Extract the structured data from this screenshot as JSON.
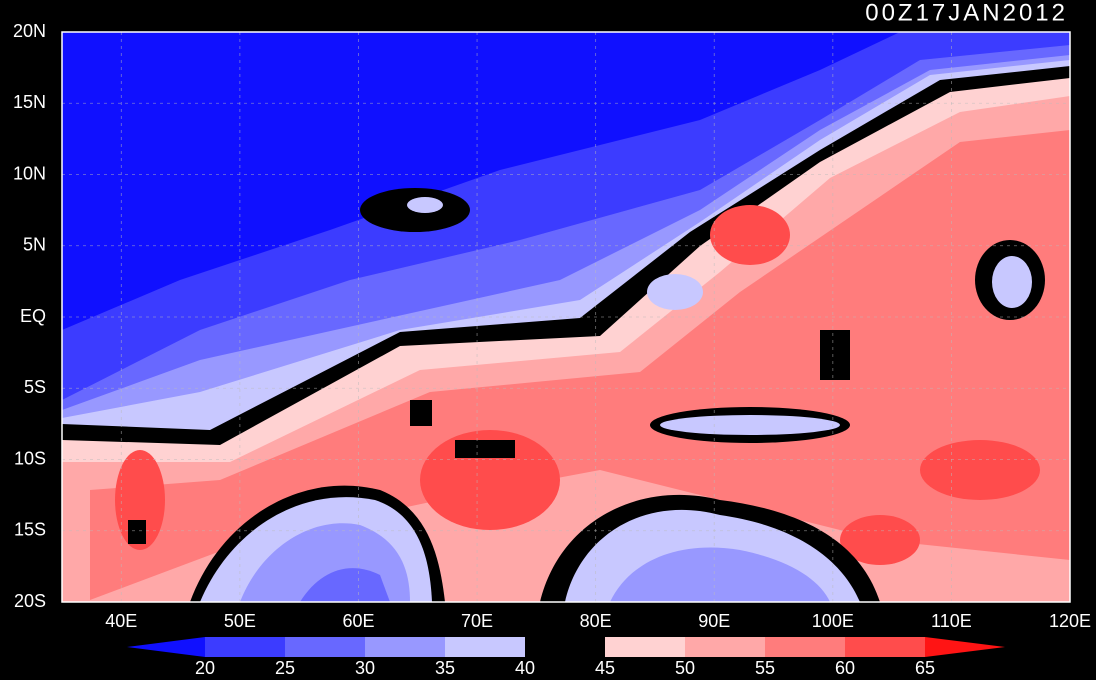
{
  "title": "00Z17JAN2012",
  "lat_labels": [
    "20N",
    "15N",
    "10N",
    "5N",
    "EQ",
    "5S",
    "10S",
    "15S",
    "20S"
  ],
  "lon_labels": [
    "40E",
    "50E",
    "60E",
    "70E",
    "80E",
    "90E",
    "100E",
    "110E",
    "120E"
  ],
  "colorbar": {
    "levels": [
      20,
      25,
      30,
      35,
      40,
      45,
      50,
      55,
      60,
      65
    ],
    "colors": [
      "#1010ff",
      "#3c3cff",
      "#6868ff",
      "#9898ff",
      "#c8c8ff",
      "#000000",
      "#ffd2d2",
      "#ffa8a8",
      "#ff7c7c",
      "#ff4c4c",
      "#ff1414"
    ]
  }
}
